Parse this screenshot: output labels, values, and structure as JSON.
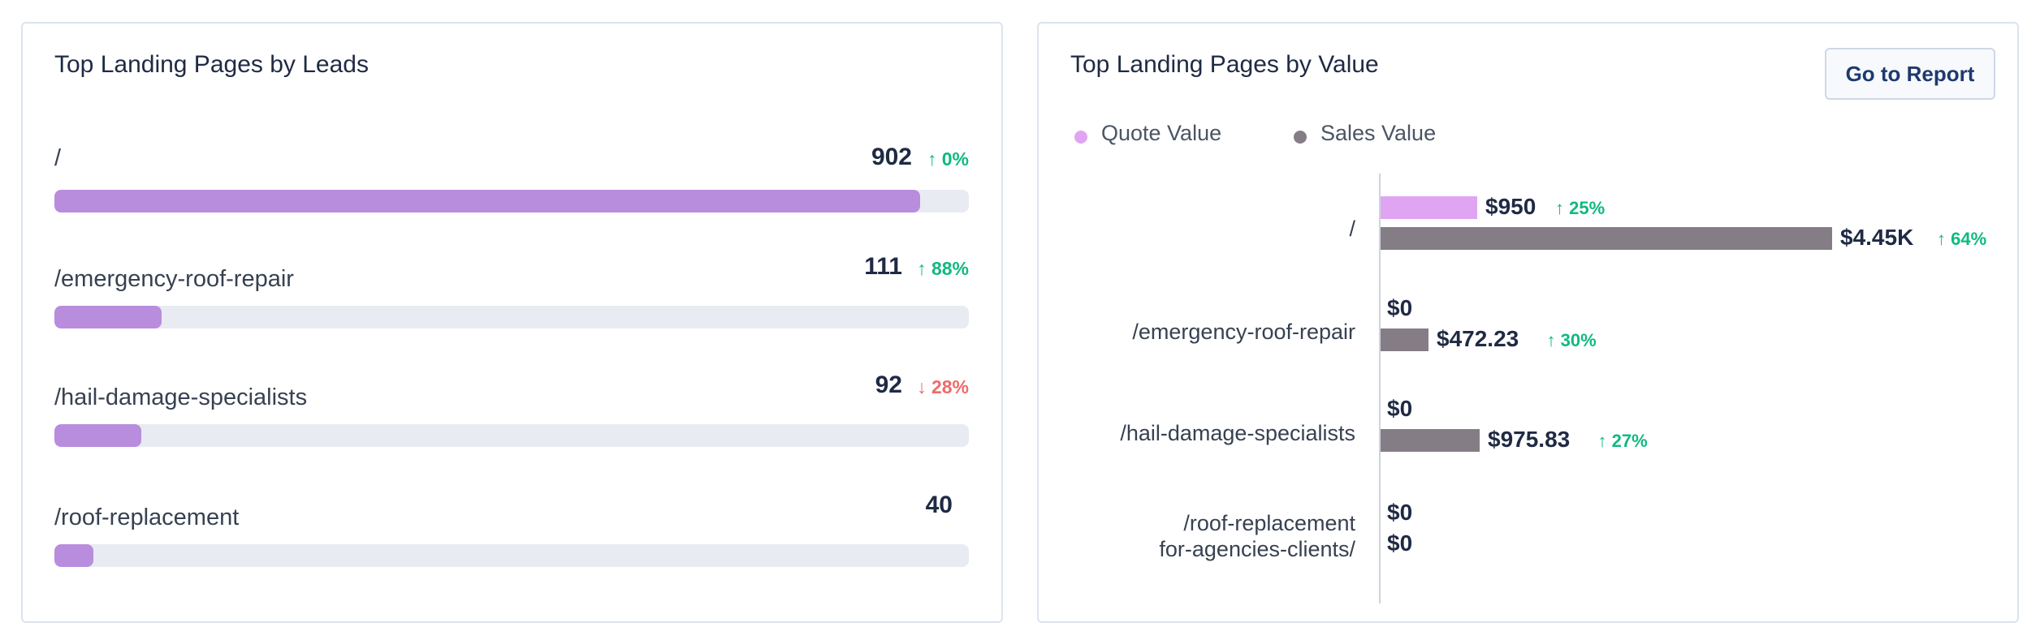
{
  "leads_card": {
    "title": "Top Landing Pages by Leads",
    "rows": [
      {
        "label": "/",
        "count": "902",
        "change": "0%",
        "direction": "up",
        "share": 0.947
      },
      {
        "label": "/emergency-roof-repair",
        "count": "111",
        "change": "88%",
        "direction": "up",
        "share": 0.117
      },
      {
        "label": "/hail-damage-specialists",
        "count": "92",
        "change": "28%",
        "direction": "down",
        "share": 0.095
      },
      {
        "label": "/roof-replacement",
        "count": "40",
        "change": "",
        "direction": "",
        "share": 0.043
      }
    ]
  },
  "value_card": {
    "title": "Top Landing Pages by Value",
    "button_label": "Go to Report",
    "legend": [
      {
        "label": "Quote Value",
        "color": "#dfa5f3"
      },
      {
        "label": "Sales Value",
        "color": "#857d86"
      }
    ],
    "chart_data": {
      "type": "bar",
      "orientation": "horizontal",
      "categories": [
        "/",
        "/emergency-roof-repair",
        "/hail-damage-specialists",
        "/roof-replacement\nfor-agencies-clients/"
      ],
      "category_lines": [
        [
          "/"
        ],
        [
          "/emergency-roof-repair"
        ],
        [
          "/hail-damage-specialists"
        ],
        [
          "/roof-replacement",
          "for-agencies-clients/"
        ]
      ],
      "series": [
        {
          "name": "Quote Value",
          "color": "#dfa5f3",
          "values": [
            950,
            0,
            0,
            0
          ],
          "labels": [
            "$950",
            "$0",
            "$0",
            "$0"
          ],
          "changes": [
            "25%",
            "",
            "",
            ""
          ]
        },
        {
          "name": "Sales Value",
          "color": "#857d86",
          "values": [
            4450,
            472.23,
            975.83,
            0
          ],
          "labels": [
            "$4.45K",
            "$472.23",
            "$975.83",
            "$0"
          ],
          "changes": [
            "64%",
            "30%",
            "27%",
            ""
          ]
        }
      ],
      "xlim": [
        0,
        4450
      ]
    }
  },
  "icons": {
    "up_arrow": "↑",
    "down_arrow": "↓"
  }
}
